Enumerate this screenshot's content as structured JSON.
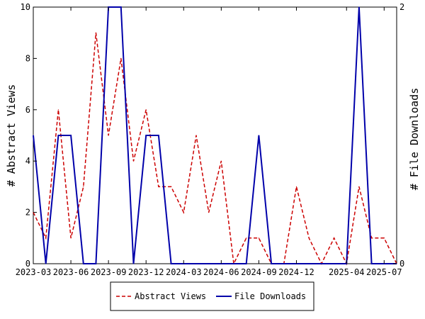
{
  "chart_data": {
    "type": "line",
    "x": [
      "2023-03",
      "2023-04",
      "2023-05",
      "2023-06",
      "2023-07",
      "2023-08",
      "2023-09",
      "2023-10",
      "2023-11",
      "2023-12",
      "2024-01",
      "2024-02",
      "2024-03",
      "2024-04",
      "2024-05",
      "2024-06",
      "2024-07",
      "2024-08",
      "2024-09",
      "2024-10",
      "2024-11",
      "2024-12",
      "2025-01",
      "2025-02",
      "2025-03",
      "2025-04",
      "2025-05",
      "2025-06",
      "2025-07",
      "2025-08"
    ],
    "x_ticks": [
      "2023-03",
      "2023-06",
      "2023-09",
      "2023-12",
      "2024-03",
      "2024-06",
      "2024-09",
      "2024-12",
      "2025-04",
      "2025-07"
    ],
    "series": [
      {
        "name": "Abstract Views",
        "axis": "left",
        "color": "#cc0000",
        "dash": "5,3",
        "values": [
          2,
          1,
          6,
          1,
          3,
          9,
          5,
          8,
          4,
          6,
          3,
          3,
          2,
          5,
          2,
          4,
          0,
          1,
          1,
          0,
          0,
          3,
          1,
          0,
          1,
          0,
          3,
          1,
          1,
          0
        ]
      },
      {
        "name": "File Downloads",
        "axis": "right",
        "color": "#0000aa",
        "dash": "",
        "values": [
          1,
          0,
          1,
          1,
          0,
          0,
          2,
          2,
          0,
          1,
          1,
          0,
          0,
          0,
          0,
          0,
          0,
          0,
          1,
          0,
          0,
          0,
          0,
          0,
          0,
          0,
          2,
          0,
          0,
          0
        ]
      }
    ],
    "ylabel": "# Abstract Views",
    "y2label": "# File Downloads",
    "ylim": [
      0,
      10
    ],
    "y2lim": [
      0,
      2
    ],
    "yticks": [
      "0",
      "2",
      "4",
      "6",
      "8",
      "10"
    ],
    "y2ticks": [
      "0",
      "2"
    ],
    "legend": "bottom",
    "grid": false
  }
}
